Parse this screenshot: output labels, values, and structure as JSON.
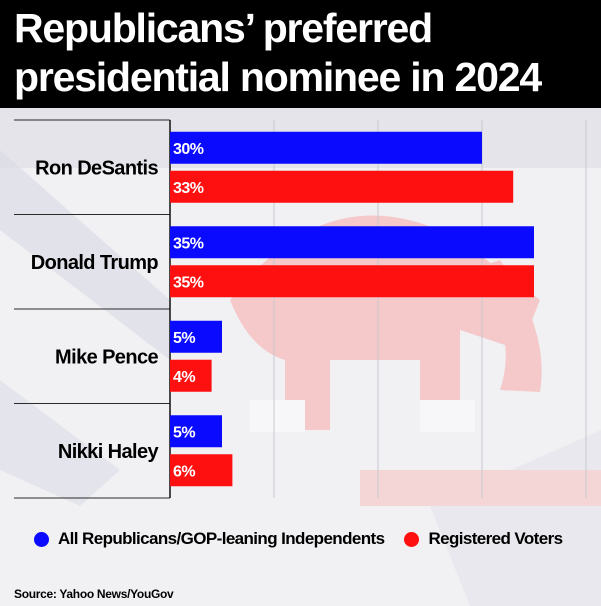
{
  "header": {
    "title_line1": "Republicans’ preferred",
    "title_line2": "presidential nominee in 2024"
  },
  "colors": {
    "series_blue": "#0a0aff",
    "series_red": "#ff1010",
    "header_bg": "#000000"
  },
  "chart_data": {
    "type": "bar",
    "orientation": "horizontal",
    "categories": [
      "Ron DeSantis",
      "Donald Trump",
      "Mike Pence",
      "Nikki Haley"
    ],
    "series": [
      {
        "name": "All Republicans/GOP-leaning Independents",
        "values": [
          30,
          35,
          5,
          5
        ]
      },
      {
        "name": "Registered Voters",
        "values": [
          33,
          35,
          4,
          6
        ]
      }
    ],
    "data_labels": [
      [
        "30%",
        "35%",
        "5%",
        "5%"
      ],
      [
        "33%",
        "35%",
        "4%",
        "6%"
      ]
    ],
    "xlim": [
      0,
      40
    ],
    "grid": true,
    "legend_position": "bottom"
  },
  "footer": {
    "source": "Source: Yahoo News/YouGov"
  }
}
